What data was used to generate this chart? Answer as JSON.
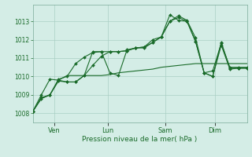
{
  "background_color": "#d4ede6",
  "grid_color": "#aacfc4",
  "line_color_dark": "#1a6b2a",
  "xlabel": "Pression niveau de la mer( hPa )",
  "xlim": [
    0,
    100
  ],
  "ylim": [
    1007.5,
    1013.9
  ],
  "yticks": [
    1008,
    1009,
    1010,
    1011,
    1012,
    1013
  ],
  "xtick_positions": [
    10,
    35,
    62,
    85
  ],
  "xtick_labels": [
    "Ven",
    "Lun",
    "Sam",
    "Dim"
  ],
  "x": [
    0,
    4,
    8,
    12,
    16,
    20,
    24,
    28,
    32,
    36,
    40,
    44,
    48,
    52,
    56,
    60,
    64,
    68,
    72,
    76,
    80,
    84,
    88,
    92,
    96,
    100
  ],
  "line1": [
    1008.1,
    1008.8,
    1009.0,
    1009.8,
    1010.05,
    1010.05,
    1010.05,
    1010.05,
    1010.05,
    1010.1,
    1010.2,
    1010.25,
    1010.3,
    1010.35,
    1010.4,
    1010.5,
    1010.55,
    1010.6,
    1010.65,
    1010.7,
    1010.7,
    1010.7,
    1010.7,
    1010.7,
    1010.7,
    1010.7
  ],
  "line2": [
    1008.1,
    1008.85,
    1009.0,
    1009.85,
    1010.0,
    1010.7,
    1011.05,
    1011.3,
    1011.35,
    1010.2,
    1010.05,
    1011.45,
    1011.55,
    1011.6,
    1012.0,
    1012.15,
    1013.0,
    1013.3,
    1013.05,
    1012.1,
    1010.2,
    1010.3,
    1011.8,
    1010.5,
    1010.5,
    1010.5
  ],
  "line3": [
    1008.1,
    1008.8,
    1009.0,
    1009.75,
    1009.7,
    1009.7,
    1010.05,
    1010.6,
    1011.1,
    1011.35,
    1011.35,
    1011.4,
    1011.55,
    1011.6,
    1011.85,
    1012.15,
    1013.0,
    1013.2,
    1013.0,
    1011.9,
    1010.2,
    1010.0,
    1011.7,
    1010.4,
    1010.45,
    1010.45
  ],
  "line4": [
    1008.1,
    1009.0,
    1009.85,
    1009.8,
    1009.7,
    1009.7,
    1010.05,
    1011.35,
    1011.35,
    1011.35,
    1011.35,
    1011.4,
    1011.55,
    1011.55,
    1011.85,
    1012.15,
    1013.35,
    1013.05,
    1013.0,
    1011.9,
    1010.2,
    1010.0,
    1011.85,
    1010.45,
    1010.45,
    1010.45
  ]
}
